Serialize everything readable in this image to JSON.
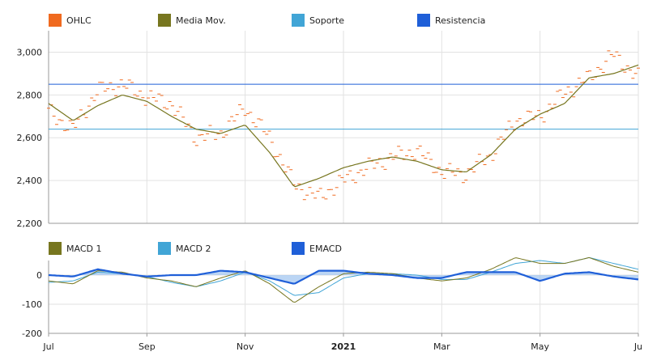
{
  "chart_data": [
    {
      "type": "line",
      "title": "",
      "legend": [
        {
          "name": "OHLC",
          "color": "#f06a1f"
        },
        {
          "name": "Media Mov.",
          "color": "#77761f"
        },
        {
          "name": "Soporte",
          "color": "#41a5d6"
        },
        {
          "name": "Resistencia",
          "color": "#1f5fd8"
        }
      ],
      "legend_position": "top",
      "ylim": [
        2200,
        3100
      ],
      "yticks": [
        2200,
        2400,
        2600,
        2800,
        3000
      ],
      "ytick_labels": [
        "2,200",
        "2,400",
        "2,600",
        "2,800",
        "3,000"
      ],
      "grid": true,
      "support": 2640,
      "resistance": 2850,
      "x": [
        0,
        0.5,
        1,
        1.5,
        2,
        2.5,
        3,
        3.5,
        4,
        4.5,
        5,
        5.5,
        6,
        6.5,
        7,
        7.5,
        8,
        8.5,
        9,
        9.5,
        10,
        10.5,
        11,
        11.5,
        12
      ],
      "ohlc_close": [
        2720,
        2640,
        2820,
        2850,
        2790,
        2760,
        2600,
        2620,
        2740,
        2600,
        2380,
        2320,
        2400,
        2460,
        2510,
        2540,
        2440,
        2430,
        2520,
        2680,
        2700,
        2810,
        2880,
        2990,
        2880
      ],
      "moving_average": [
        2760,
        2680,
        2750,
        2800,
        2770,
        2700,
        2640,
        2620,
        2660,
        2530,
        2370,
        2410,
        2460,
        2490,
        2510,
        2490,
        2450,
        2440,
        2520,
        2640,
        2710,
        2760,
        2880,
        2900,
        2940
      ]
    },
    {
      "type": "line",
      "legend": [
        {
          "name": "MACD 1",
          "color": "#77761f"
        },
        {
          "name": "MACD 2",
          "color": "#41a5d6"
        },
        {
          "name": "EMACD",
          "color": "#1f5fd8"
        }
      ],
      "legend_position": "top",
      "ylim": [
        -200,
        50
      ],
      "yticks": [
        -200,
        -100,
        0
      ],
      "ytick_labels": [
        "-200",
        "-100",
        "0"
      ],
      "grid": true,
      "x": [
        0,
        0.5,
        1,
        1.5,
        2,
        2.5,
        3,
        3.5,
        4,
        4.5,
        5,
        5.5,
        6,
        6.5,
        7,
        7.5,
        8,
        8.5,
        9,
        9.5,
        10,
        10.5,
        11,
        11.5,
        12
      ],
      "macd1": [
        -20,
        -30,
        15,
        10,
        -10,
        -20,
        -40,
        -10,
        15,
        -30,
        -95,
        -40,
        5,
        10,
        5,
        -10,
        -20,
        -10,
        20,
        60,
        40,
        40,
        60,
        30,
        10
      ],
      "macd2": [
        -25,
        -20,
        10,
        5,
        -5,
        -25,
        -40,
        -20,
        10,
        -20,
        -70,
        -60,
        -10,
        5,
        5,
        0,
        -15,
        -15,
        10,
        40,
        50,
        40,
        60,
        40,
        20
      ],
      "emacd": [
        0,
        -5,
        20,
        5,
        -5,
        0,
        0,
        15,
        10,
        -10,
        -30,
        15,
        15,
        5,
        0,
        -10,
        -10,
        10,
        10,
        10,
        -20,
        5,
        10,
        -5,
        -15
      ]
    }
  ],
  "x_axis": {
    "labels": [
      {
        "text": "Jul",
        "x": 0,
        "bold": false
      },
      {
        "text": "Sep",
        "x": 2,
        "bold": false
      },
      {
        "text": "Nov",
        "x": 4,
        "bold": false
      },
      {
        "text": "2021",
        "x": 6,
        "bold": true
      },
      {
        "text": "Mar",
        "x": 8,
        "bold": false
      },
      {
        "text": "May",
        "x": 10,
        "bold": false
      },
      {
        "text": "Ju",
        "x": 12,
        "bold": false
      }
    ],
    "xlim": [
      0,
      12
    ]
  }
}
